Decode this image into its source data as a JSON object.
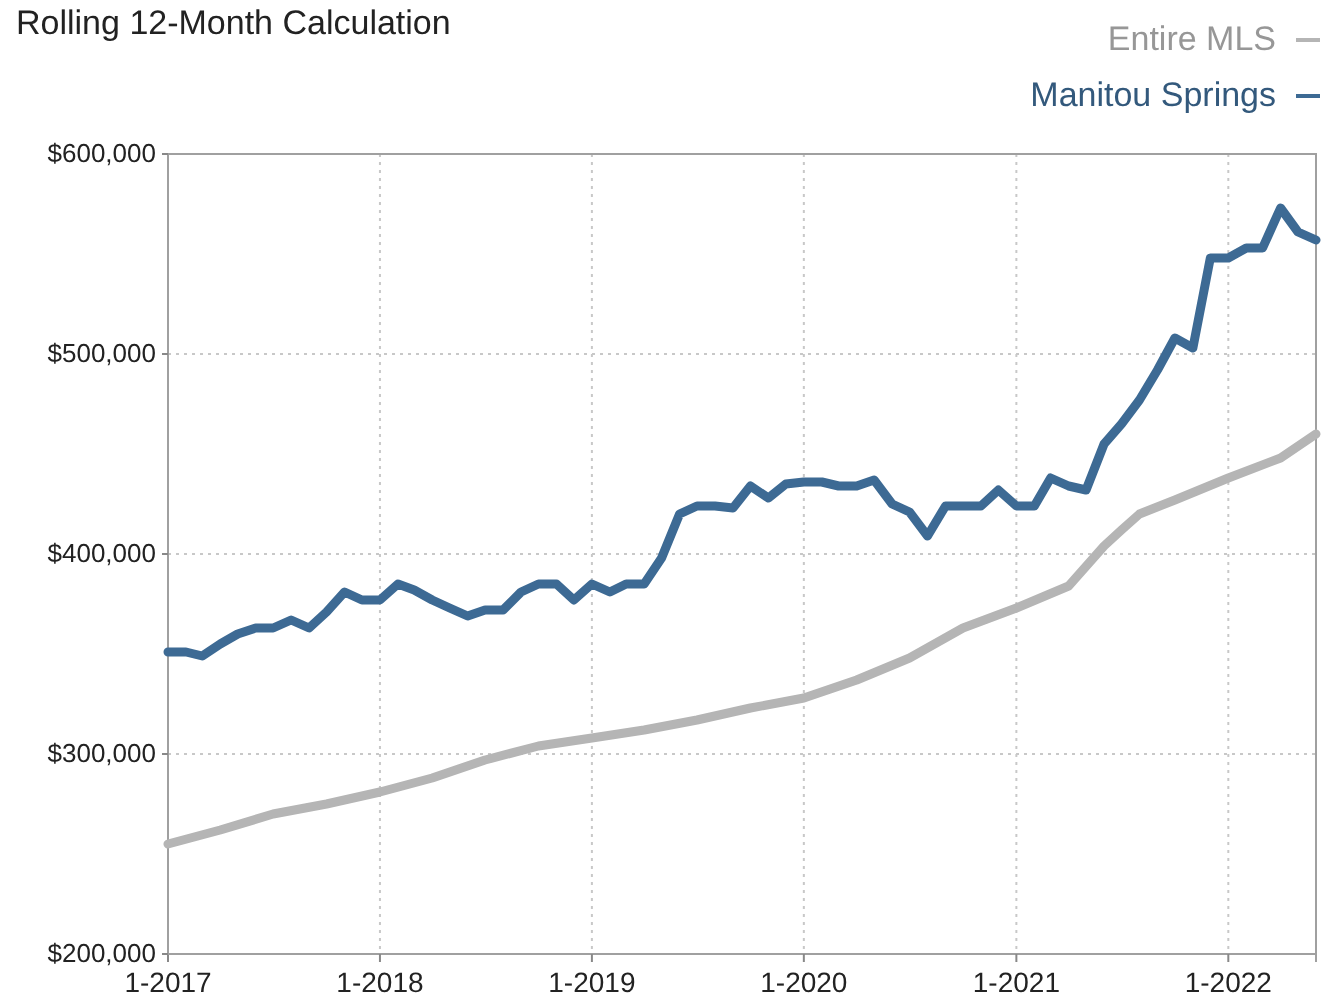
{
  "chart_data": {
    "type": "line",
    "title": "Rolling 12-Month Calculation",
    "x": [
      "2017-01",
      "2017-02",
      "2017-03",
      "2017-04",
      "2017-05",
      "2017-06",
      "2017-07",
      "2017-08",
      "2017-09",
      "2017-10",
      "2017-11",
      "2017-12",
      "2018-01",
      "2018-02",
      "2018-03",
      "2018-04",
      "2018-05",
      "2018-06",
      "2018-07",
      "2018-08",
      "2018-09",
      "2018-10",
      "2018-11",
      "2018-12",
      "2019-01",
      "2019-02",
      "2019-03",
      "2019-04",
      "2019-05",
      "2019-06",
      "2019-07",
      "2019-08",
      "2019-09",
      "2019-10",
      "2019-11",
      "2019-12",
      "2020-01",
      "2020-02",
      "2020-03",
      "2020-04",
      "2020-05",
      "2020-06",
      "2020-07",
      "2020-08",
      "2020-09",
      "2020-10",
      "2020-11",
      "2020-12",
      "2021-01",
      "2021-02",
      "2021-03",
      "2021-04",
      "2021-05",
      "2021-06",
      "2021-07",
      "2021-08",
      "2021-09",
      "2021-10",
      "2021-11",
      "2021-12",
      "2022-01",
      "2022-02",
      "2022-03",
      "2022-04",
      "2022-05",
      "2022-06"
    ],
    "series": [
      {
        "name": "Entire MLS",
        "color": "#b5b5b5",
        "x": [
          "2017-01",
          "2017-04",
          "2017-07",
          "2017-10",
          "2018-01",
          "2018-04",
          "2018-07",
          "2018-10",
          "2019-01",
          "2019-04",
          "2019-07",
          "2019-10",
          "2020-01",
          "2020-04",
          "2020-07",
          "2020-10",
          "2021-01",
          "2021-04",
          "2021-06",
          "2021-07",
          "2021-08",
          "2021-10",
          "2022-01",
          "2022-04",
          "2022-06"
        ],
        "values": [
          255000,
          262000,
          270000,
          275000,
          281000,
          288000,
          297000,
          304000,
          308000,
          312000,
          317000,
          323000,
          328000,
          337000,
          348000,
          363000,
          373000,
          384000,
          404000,
          412000,
          420000,
          427000,
          438000,
          448000,
          460000
        ]
      },
      {
        "name": "Manitou Springs",
        "color": "#3d6a94",
        "values": [
          351000,
          351000,
          349000,
          355000,
          360000,
          363000,
          363000,
          367000,
          363000,
          371000,
          381000,
          377000,
          377000,
          385000,
          382000,
          377000,
          373000,
          369000,
          372000,
          372000,
          381000,
          385000,
          385000,
          377000,
          385000,
          381000,
          385000,
          385000,
          398000,
          420000,
          424000,
          424000,
          423000,
          434000,
          428000,
          435000,
          436000,
          436000,
          434000,
          434000,
          437000,
          425000,
          421000,
          409000,
          424000,
          424000,
          424000,
          432000,
          424000,
          424000,
          438000,
          434000,
          432000,
          455000,
          465000,
          477000,
          492000,
          508000,
          503000,
          548000,
          548000,
          553000,
          553000,
          573000,
          561000,
          557000
        ]
      }
    ],
    "xlim": [
      "2017-01",
      "2022-06"
    ],
    "xticks": [
      {
        "value": "2017-01",
        "label": "1-2017"
      },
      {
        "value": "2018-01",
        "label": "1-2018"
      },
      {
        "value": "2019-01",
        "label": "1-2019"
      },
      {
        "value": "2020-01",
        "label": "1-2020"
      },
      {
        "value": "2021-01",
        "label": "1-2021"
      },
      {
        "value": "2022-01",
        "label": "1-2022"
      }
    ],
    "ylim": [
      200000,
      600000
    ],
    "yticks": [
      {
        "value": 200000,
        "label": "$200,000"
      },
      {
        "value": 300000,
        "label": "$300,000"
      },
      {
        "value": 400000,
        "label": "$400,000"
      },
      {
        "value": 500000,
        "label": "$500,000"
      },
      {
        "value": 600000,
        "label": "$600,000"
      }
    ],
    "grid": true,
    "legend": "top right",
    "line_style": "solid"
  }
}
